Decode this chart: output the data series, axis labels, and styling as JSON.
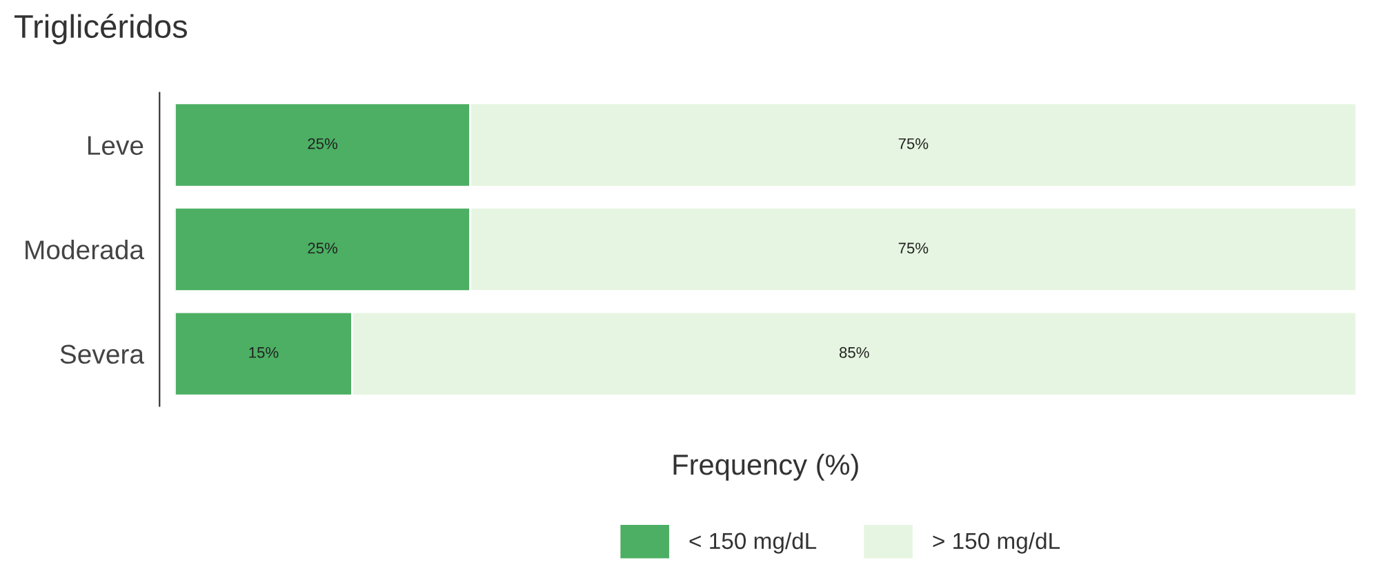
{
  "chart_data": {
    "type": "bar",
    "title": "Triglicéridos",
    "xlabel": "Frequency (%)",
    "orientation": "horizontal",
    "stacked": true,
    "legend": "bottom",
    "grid": false,
    "categories": [
      "Leve",
      "Moderada",
      "Severa"
    ],
    "series": [
      {
        "name": "< 150 mg/dL",
        "color": "#4caf63",
        "values": [
          25,
          25,
          15
        ],
        "value_labels": [
          "25%",
          "25%",
          "15%"
        ]
      },
      {
        "name": "> 150 mg/dL",
        "color": "#e6f5e1",
        "values": [
          75,
          75,
          85
        ],
        "value_labels": [
          "75%",
          "75%",
          "85%"
        ]
      }
    ]
  }
}
